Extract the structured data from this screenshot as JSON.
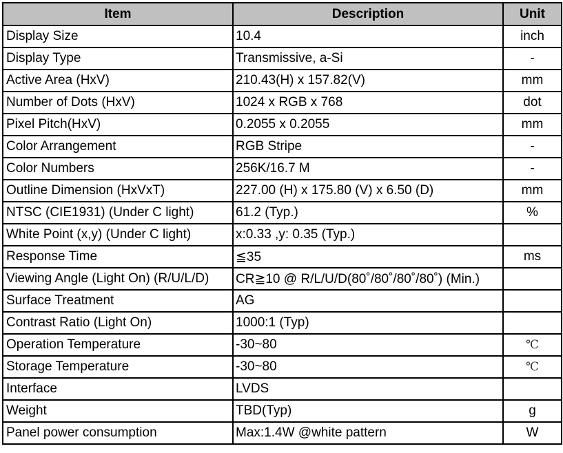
{
  "headers": {
    "item": "Item",
    "description": "Description",
    "unit": "Unit"
  },
  "header_bg": "#c0c0c0",
  "rows": [
    {
      "item": "Display Size",
      "description": "10.4",
      "unit": "inch"
    },
    {
      "item": "Display Type",
      "description": "Transmissive, a-Si",
      "unit": "-"
    },
    {
      "item": "Active Area (HxV)",
      "description": "210.43(H) x 157.82(V)",
      "unit": "mm"
    },
    {
      "item": "Number of Dots (HxV)",
      "description": "1024 x RGB x 768",
      "unit": "dot"
    },
    {
      "item": "Pixel Pitch(HxV)",
      "description": "0.2055 x 0.2055",
      "unit": "mm"
    },
    {
      "item": "Color Arrangement",
      "description": "RGB Stripe",
      "unit": "-"
    },
    {
      "item": "Color Numbers",
      "description": "256K/16.7 M",
      "unit": "-"
    },
    {
      "item": "Outline Dimension (HxVxT)",
      "description": "227.00 (H) x 175.80 (V) x 6.50 (D)",
      "unit": "mm"
    },
    {
      "item": "NTSC (CIE1931) (Under C light)",
      "description": "61.2 (Typ.)",
      "unit": "%"
    },
    {
      "item": "White Point (x,y) (Under C light)",
      "description": "x:0.33  ,y: 0.35  (Typ.)",
      "unit": ""
    },
    {
      "item": "Response Time",
      "description": "≦35",
      "unit": "ms"
    },
    {
      "item": "Viewing Angle (Light On) (R/U/L/D)",
      "description": "CR≧10 @ R/L/U/D(80˚/80˚/80˚/80˚) (Min.)",
      "unit": ""
    },
    {
      "item": "Surface Treatment",
      "description": "AG",
      "unit": ""
    },
    {
      "item": "Contrast Ratio (Light On)",
      "description": "1000:1 (Typ)",
      "unit": ""
    },
    {
      "item": "Operation Temperature",
      "description": "-30~80",
      "unit": "℃"
    },
    {
      "item": "Storage Temperature",
      "description": "-30~80",
      "unit": "℃"
    },
    {
      "item": "Interface",
      "description": "LVDS",
      "unit": ""
    },
    {
      "item": "Weight",
      "description": "TBD(Typ)",
      "unit": "g"
    },
    {
      "item": "Panel power consumption",
      "description": "Max:1.4W @white pattern",
      "unit": "W"
    }
  ]
}
